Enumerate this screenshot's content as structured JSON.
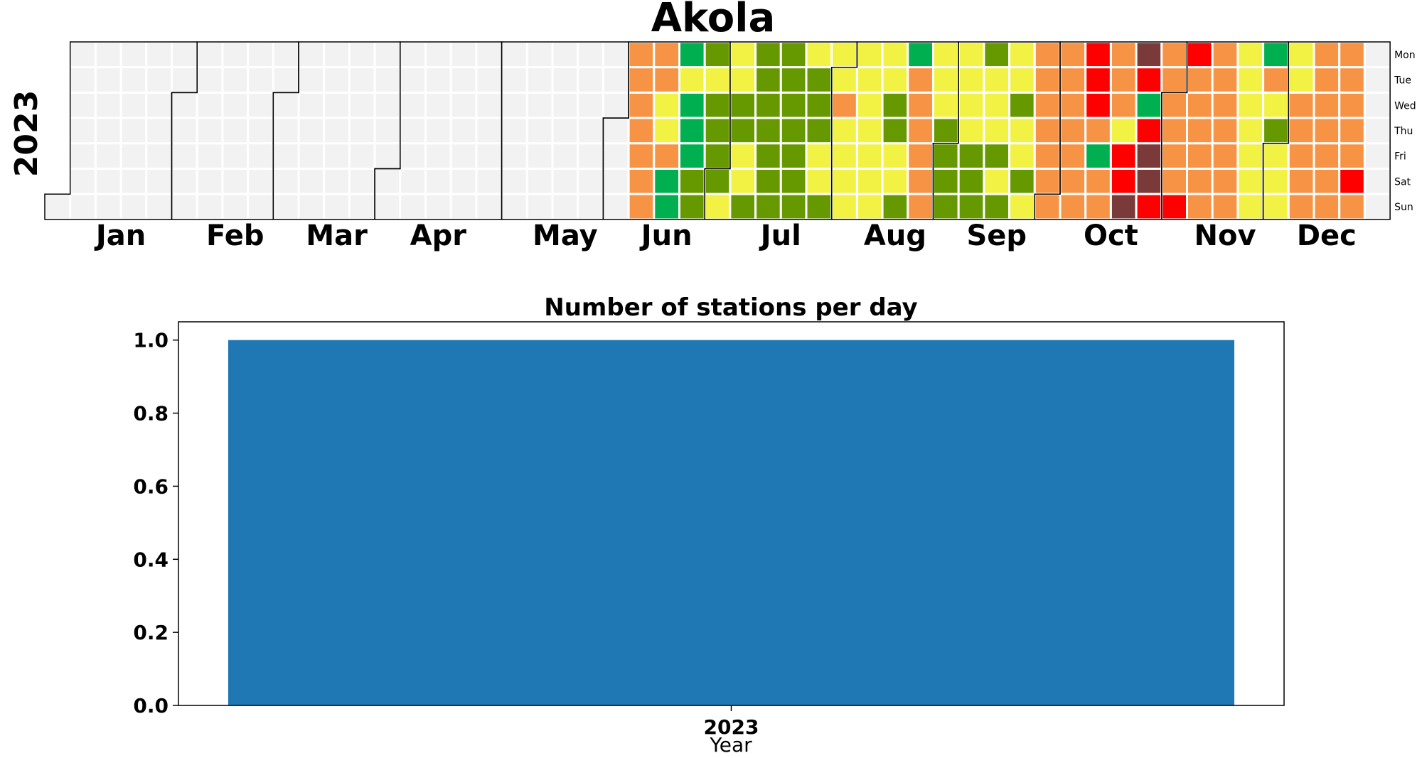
{
  "calendar": {
    "title": "Akola",
    "year_label": "2023",
    "months": [
      "Jan",
      "Feb",
      "Mar",
      "Apr",
      "May",
      "Jun",
      "Jul",
      "Aug",
      "Sep",
      "Oct",
      "Nov",
      "Dec"
    ],
    "weekdays": [
      "Mon",
      "Tue",
      "Wed",
      "Thu",
      "Fri",
      "Sat",
      "Sun"
    ],
    "colors": {
      "empty": "#f2f2f2",
      "good": "#00b050",
      "satisfactory": "#669900",
      "moderate": "#f2f244",
      "poor": "#f79345",
      "very_poor": "#ff0000",
      "severe": "#7b3a3a"
    },
    "weeks_from_jun5": [
      [
        "poor",
        "poor",
        "poor",
        "poor",
        "poor",
        "poor",
        "poor"
      ],
      [
        "poor",
        "poor",
        "moderate",
        "moderate",
        "poor",
        "good",
        "good"
      ],
      [
        "good",
        "moderate",
        "good",
        "good",
        "good",
        "satisfactory",
        "satisfactory"
      ],
      [
        "satisfactory",
        "moderate",
        "satisfactory",
        "satisfactory",
        "satisfactory",
        "satisfactory",
        "moderate"
      ],
      [
        "moderate",
        "moderate",
        "satisfactory",
        "satisfactory",
        "moderate",
        "moderate",
        "satisfactory"
      ],
      [
        "satisfactory",
        "satisfactory",
        "satisfactory",
        "satisfactory",
        "satisfactory",
        "satisfactory",
        "satisfactory"
      ],
      [
        "satisfactory",
        "satisfactory",
        "satisfactory",
        "satisfactory",
        "satisfactory",
        "satisfactory",
        "satisfactory"
      ],
      [
        "moderate",
        "satisfactory",
        "satisfactory",
        "satisfactory",
        "moderate",
        "moderate",
        "satisfactory"
      ],
      [
        "moderate",
        "moderate",
        "poor",
        "moderate",
        "moderate",
        "moderate",
        "moderate"
      ],
      [
        "moderate",
        "moderate",
        "moderate",
        "moderate",
        "moderate",
        "moderate",
        "moderate"
      ],
      [
        "moderate",
        "moderate",
        "satisfactory",
        "satisfactory",
        "moderate",
        "moderate",
        "satisfactory"
      ],
      [
        "good",
        "poor",
        "poor",
        "poor",
        "poor",
        "poor",
        "poor"
      ],
      [
        "moderate",
        "moderate",
        "moderate",
        "satisfactory",
        "satisfactory",
        "satisfactory",
        "satisfactory"
      ],
      [
        "moderate",
        "moderate",
        "moderate",
        "moderate",
        "satisfactory",
        "satisfactory",
        "satisfactory"
      ],
      [
        "satisfactory",
        "moderate",
        "moderate",
        "moderate",
        "satisfactory",
        "moderate",
        "satisfactory"
      ],
      [
        "moderate",
        "moderate",
        "satisfactory",
        "moderate",
        "moderate",
        "satisfactory",
        "moderate"
      ],
      [
        "poor",
        "poor",
        "poor",
        "poor",
        "poor",
        "poor",
        "poor"
      ],
      [
        "poor",
        "poor",
        "poor",
        "poor",
        "poor",
        "poor",
        "poor"
      ],
      [
        "very_poor",
        "very_poor",
        "very_poor",
        "poor",
        "good",
        "poor",
        "poor"
      ],
      [
        "poor",
        "poor",
        "poor",
        "moderate",
        "very_poor",
        "very_poor",
        "severe"
      ],
      [
        "severe",
        "very_poor",
        "good",
        "very_poor",
        "severe",
        "severe",
        "very_poor"
      ],
      [
        "poor",
        "poor",
        "poor",
        "poor",
        "poor",
        "poor",
        "very_poor"
      ],
      [
        "very_poor",
        "poor",
        "poor",
        "poor",
        "poor",
        "poor",
        "poor"
      ],
      [
        "poor",
        "poor",
        "poor",
        "poor",
        "poor",
        "poor",
        "poor"
      ],
      [
        "moderate",
        "moderate",
        "moderate",
        "moderate",
        "moderate",
        "moderate",
        "moderate"
      ],
      [
        "good",
        "poor",
        "moderate",
        "satisfactory",
        "moderate",
        "moderate",
        "moderate"
      ],
      [
        "moderate",
        "moderate",
        "poor",
        "poor",
        "poor",
        "poor",
        "poor"
      ],
      [
        "poor",
        "poor",
        "poor",
        "poor",
        "poor",
        "poor",
        "poor"
      ],
      [
        "poor",
        "poor",
        "poor",
        "poor",
        "poor",
        "very_poor",
        "poor"
      ]
    ]
  },
  "chart_data": {
    "type": "bar",
    "title": "Number of stations per day",
    "categories": [
      "2023"
    ],
    "values": [
      1
    ],
    "xlabel": "Year",
    "ylabel": "",
    "ylim": [
      0,
      1.05
    ],
    "yticks": [
      "0.0",
      "0.2",
      "0.4",
      "0.6",
      "0.8",
      "1.0"
    ],
    "bar_color": "#1f77b4",
    "grid": false
  }
}
